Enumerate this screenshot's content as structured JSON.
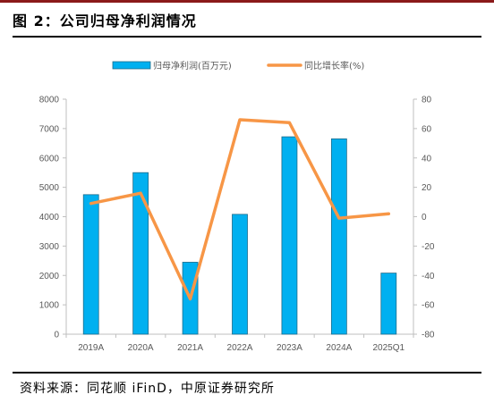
{
  "header": {
    "title": "图 2：公司归母净利润情况"
  },
  "footer": {
    "source": "资料来源：同花顺 iFinD，中原证券研究所"
  },
  "chart_data": {
    "type": "bar",
    "categories": [
      "2019A",
      "2020A",
      "2021A",
      "2022A",
      "2023A",
      "2024A",
      "2025Q1"
    ],
    "series": [
      {
        "name": "归母净利润(百万元)",
        "type": "bar",
        "axis": "left",
        "color": "#00b0f0",
        "values": [
          4750,
          5500,
          2450,
          4080,
          6720,
          6650,
          2080
        ]
      },
      {
        "name": "同比增长率(%)",
        "type": "line",
        "axis": "right",
        "color": "#f79646",
        "values": [
          9,
          16,
          -56,
          66,
          64,
          -1,
          2
        ]
      }
    ],
    "y_left": {
      "ylim": [
        0,
        8000
      ],
      "ticks": [
        "0",
        "1000",
        "2000",
        "3000",
        "4000",
        "5000",
        "6000",
        "7000",
        "8000"
      ]
    },
    "y_right": {
      "ylim": [
        -80,
        80
      ],
      "ticks": [
        "-80",
        "-60",
        "-40",
        "-20",
        "0",
        "20",
        "40",
        "60",
        "80"
      ]
    },
    "legend_position": "top",
    "grid": false
  }
}
